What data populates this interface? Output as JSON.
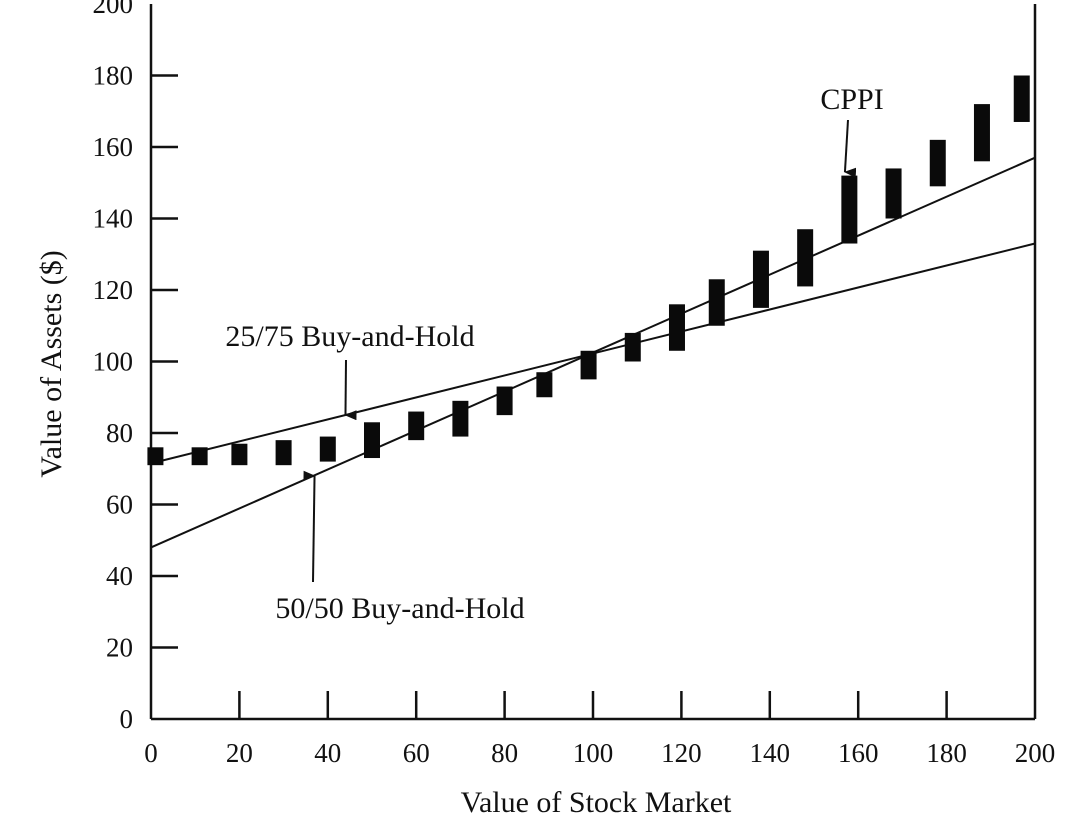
{
  "chart_data": {
    "type": "line",
    "xlabel": "Value of Stock Market",
    "ylabel": "Value of Assets ($)",
    "xlim": [
      0,
      200
    ],
    "ylim": [
      0,
      200
    ],
    "x_ticks": [
      "0",
      "20",
      "40",
      "60",
      "80",
      "100",
      "120",
      "140",
      "160",
      "180",
      "200"
    ],
    "y_ticks": [
      "0",
      "20",
      "40",
      "60",
      "80",
      "100",
      "120",
      "140",
      "160",
      "180",
      "200"
    ],
    "grid": false,
    "series": [
      {
        "name": "25/75 Buy-and-Hold",
        "kind": "line",
        "x": [
          0,
          200
        ],
        "y": [
          71.5,
          133
        ]
      },
      {
        "name": "50/50 Buy-and-Hold",
        "kind": "line",
        "x": [
          0,
          200
        ],
        "y": [
          48,
          157
        ]
      },
      {
        "name": "CPPI",
        "kind": "range-bars",
        "x": [
          1,
          11,
          20,
          30,
          40,
          50,
          60,
          70,
          80,
          89,
          99,
          109,
          119,
          128,
          138,
          148,
          158,
          168,
          178,
          188,
          197
        ],
        "low": [
          71,
          71,
          71,
          71,
          72,
          73,
          78,
          79,
          85,
          90,
          95,
          100,
          103,
          110,
          115,
          121,
          133,
          140,
          149,
          156,
          167
        ],
        "high": [
          76,
          76,
          77,
          78,
          79,
          83,
          86,
          89,
          93,
          97,
          103,
          108,
          116,
          123,
          131,
          137,
          152,
          154,
          162,
          172,
          180
        ]
      }
    ],
    "annotations": [
      {
        "label": "CPPI",
        "target_x": 157,
        "target_y": 153
      },
      {
        "label": "25/75 Buy-and-Hold",
        "target_x": 44,
        "target_y": 85
      },
      {
        "label": "50/50 Buy-and-Hold",
        "target_x": 37,
        "target_y": 68
      }
    ]
  }
}
